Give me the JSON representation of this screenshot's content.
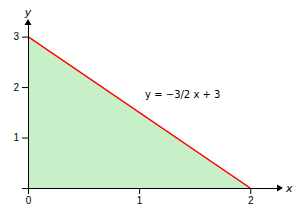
{
  "chart_data": {
    "type": "line",
    "series": [
      {
        "type": "area",
        "x": [
          0,
          2,
          0
        ],
        "values": [
          0,
          0,
          3
        ],
        "color": "#c8f0c8"
      },
      {
        "type": "line",
        "x": [
          0,
          2
        ],
        "values": [
          3,
          0
        ],
        "color": "#ff0000"
      }
    ],
    "xlim": [
      0,
      2.25
    ],
    "ylim": [
      0,
      3.25
    ],
    "xticks": [
      0,
      1,
      2
    ],
    "yticks": [
      {
        "value": 0,
        "label": null
      },
      1,
      2,
      3
    ],
    "xlabel": "x",
    "ylabel": "y",
    "annotations": [
      "y = −3/2 x + 3"
    ]
  }
}
